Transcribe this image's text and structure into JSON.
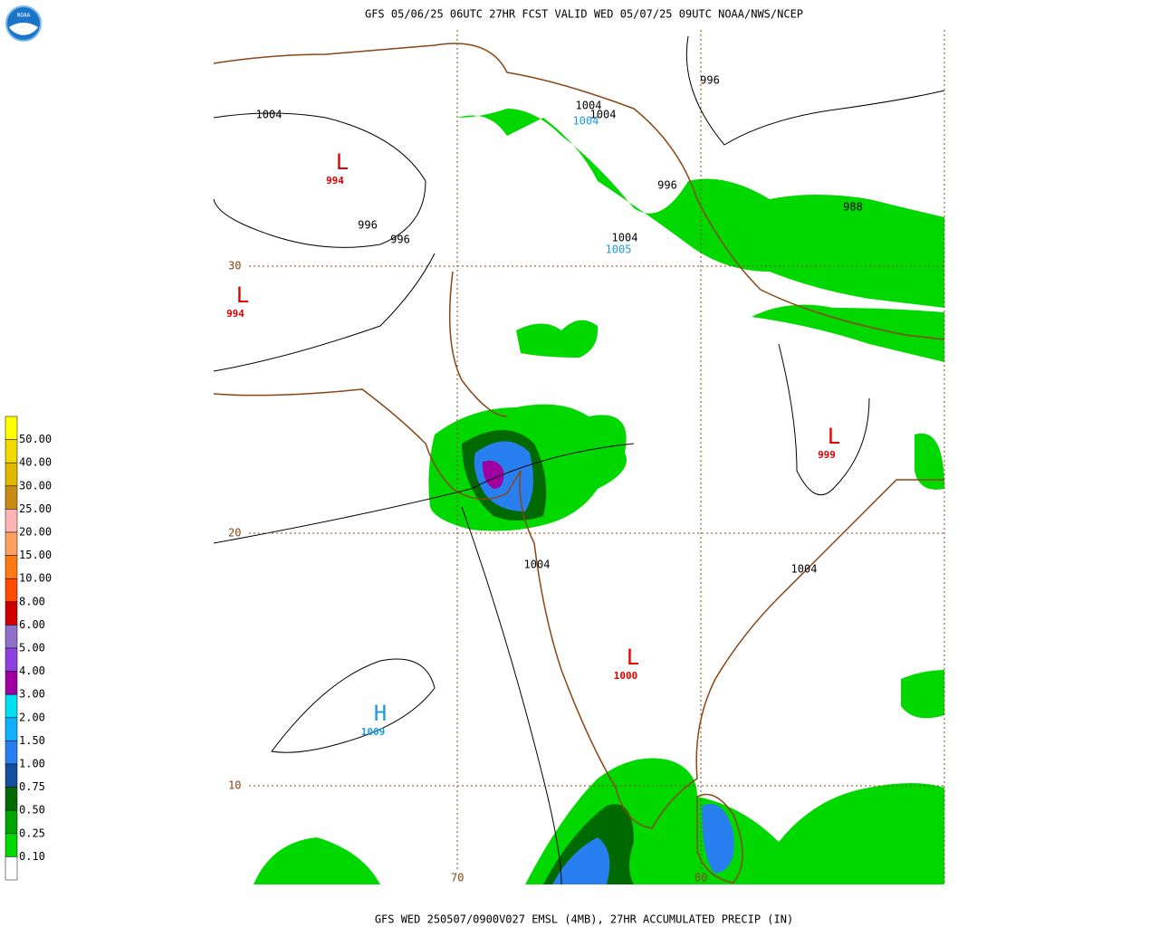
{
  "header": {
    "title": "GFS 05/06/25 06UTC 27HR FCST VALID WED 05/07/25 09UTC NOAA/NWS/NCEP"
  },
  "logo": "NOAA",
  "footer": "GFS WED 250507/0900V027 EMSL (4MB), 27HR ACCUMULATED PRECIP (IN)",
  "grid": {
    "lat": [
      "30",
      "20",
      "10"
    ],
    "lon": [
      "70",
      "80"
    ]
  },
  "isobar_labels": [
    {
      "text": "1004",
      "color": "#000000"
    },
    {
      "text": "996",
      "color": "#000000"
    },
    {
      "text": "1004",
      "color": "#000000"
    },
    {
      "text": "1004",
      "color": "#000000"
    },
    {
      "text": "1004",
      "color": "#1e9be0"
    },
    {
      "text": "996",
      "color": "#000000"
    },
    {
      "text": "996",
      "color": "#000000"
    },
    {
      "text": "996",
      "color": "#000000"
    },
    {
      "text": "988",
      "color": "#000000"
    },
    {
      "text": "1004",
      "color": "#000000"
    },
    {
      "text": "1005",
      "color": "#1e9be0"
    },
    {
      "text": "1004",
      "color": "#000000"
    },
    {
      "text": "1004",
      "color": "#000000"
    }
  ],
  "centers": [
    {
      "symbol": "L",
      "value": "994",
      "color": "#e00000"
    },
    {
      "symbol": "L",
      "value": "994",
      "color": "#e00000"
    },
    {
      "symbol": "L",
      "value": "999",
      "color": "#e00000"
    },
    {
      "symbol": "L",
      "value": "1000",
      "color": "#e00000"
    },
    {
      "symbol": "H",
      "value": "1009",
      "color": "#1e9be0"
    }
  ],
  "legend": {
    "labels": [
      "50.00",
      "40.00",
      "30.00",
      "25.00",
      "20.00",
      "15.00",
      "10.00",
      "8.00",
      "6.00",
      "5.00",
      "4.00",
      "3.00",
      "2.00",
      "1.50",
      "1.00",
      "0.75",
      "0.50",
      "0.25",
      "0.10"
    ],
    "colors": [
      "#ffff00",
      "#f0d800",
      "#e0b800",
      "#c88a10",
      "#ffb4b4",
      "#ffa060",
      "#ff7a10",
      "#ff4a00",
      "#d00000",
      "#9070c8",
      "#9040e0",
      "#a000a0",
      "#00e0f0",
      "#10b0ff",
      "#2880f0",
      "#10509c",
      "#006a00",
      "#00a400",
      "#00d800",
      "#ffffff"
    ]
  }
}
